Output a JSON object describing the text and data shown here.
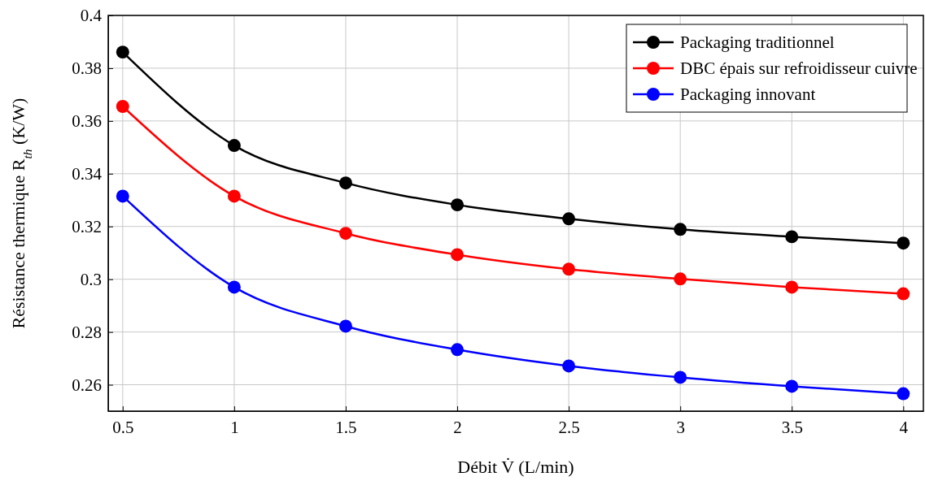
{
  "chart_data": {
    "type": "line",
    "xlabel": "Débit V̇ (L/min)",
    "ylabel": "Résistance thermique R$_{th}$ (K/W)",
    "x": [
      0.5,
      1,
      1.5,
      2,
      2.5,
      3,
      3.5,
      4
    ],
    "series": [
      {
        "name": "Packaging traditionnel",
        "color": "#000000",
        "values": [
          0.3861,
          0.3507,
          0.3365,
          0.3282,
          0.3229,
          0.3189,
          0.3161,
          0.3137
        ]
      },
      {
        "name": "DBC épais sur refroidisseur cuivre",
        "color": "#ff0000",
        "values": [
          0.3655,
          0.3315,
          0.3174,
          0.3093,
          0.3038,
          0.3001,
          0.297,
          0.2945
        ]
      },
      {
        "name": "Packaging innovant",
        "color": "#0000ff",
        "values": [
          0.3315,
          0.297,
          0.2822,
          0.2733,
          0.2671,
          0.2628,
          0.2594,
          0.2566
        ]
      }
    ],
    "xlim": [
      0.435,
      4.09
    ],
    "ylim": [
      0.25,
      0.4
    ],
    "xticks": [
      0.5,
      1,
      1.5,
      2,
      2.5,
      3,
      3.5,
      4
    ],
    "yticks": [
      0.26,
      0.28,
      0.3,
      0.32,
      0.34,
      0.36,
      0.38,
      0.4
    ],
    "grid": true,
    "legend": "top right",
    "marker": "circle",
    "line_style": "solid"
  }
}
